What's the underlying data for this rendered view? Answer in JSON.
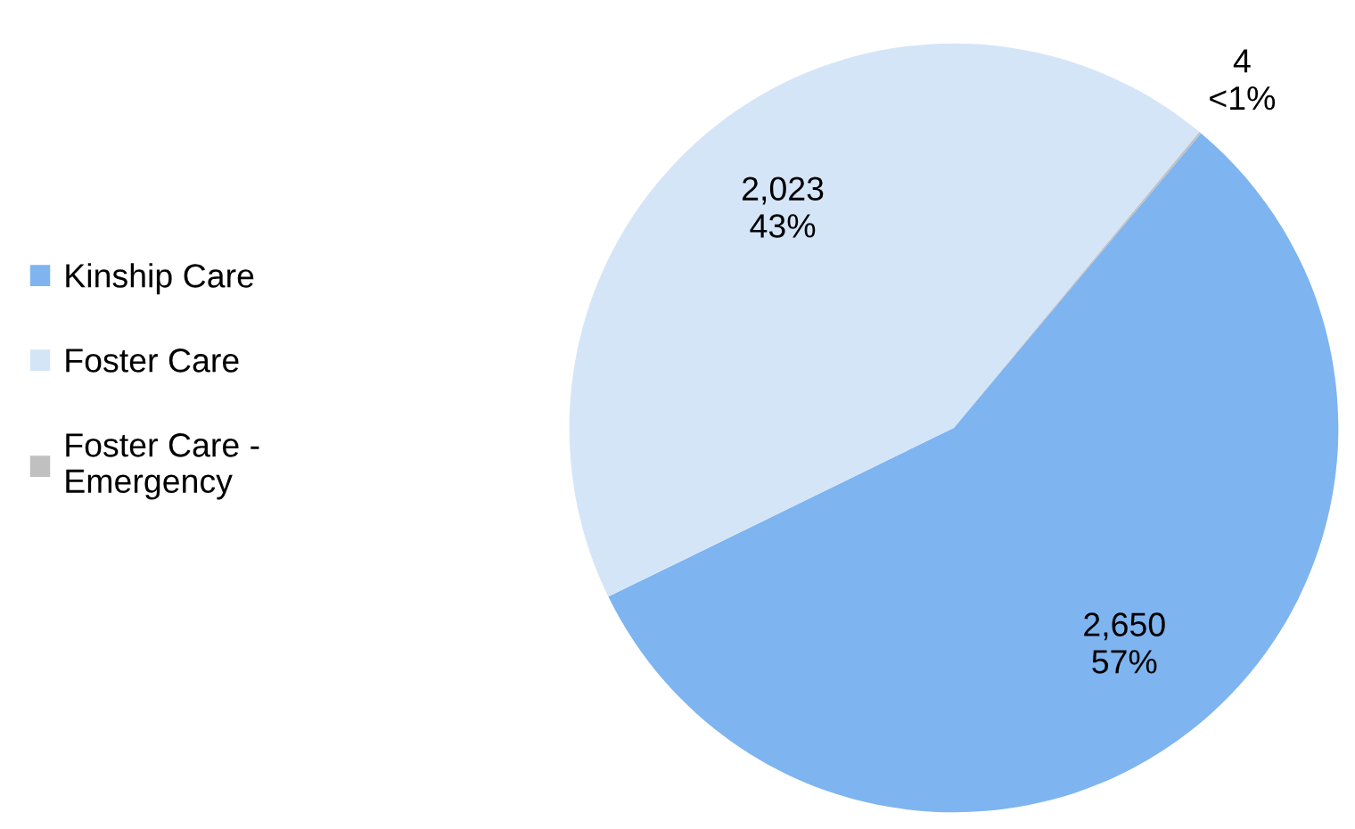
{
  "chart_data": {
    "type": "pie",
    "categories": [
      "Kinship Care",
      "Foster Care",
      "Foster Care -\nEmergency"
    ],
    "values": [
      2650,
      2023,
      4
    ],
    "colors": [
      "#7eb4f0",
      "#d5e5f8",
      "#c0c0c0"
    ],
    "value_labels": [
      "2,650\n57%",
      "2,023\n43%",
      "4\n<1%"
    ],
    "legend": "left"
  }
}
